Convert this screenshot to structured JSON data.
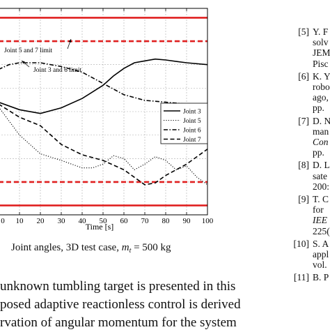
{
  "chart_data": {
    "type": "line",
    "xlabel": "Time [s]",
    "xticks": [
      "0",
      "10",
      "20",
      "30",
      "40",
      "50",
      "60",
      "70",
      "80",
      "90",
      "100"
    ],
    "xlim": [
      0,
      100
    ],
    "ylim": [
      -1.1,
      1.1
    ],
    "grid": true,
    "legend_position": "center-right",
    "limit_lines": [
      {
        "label": "Joint 5 and 7 limit",
        "y": 1.0,
        "color": "#e02020",
        "style": "solid"
      },
      {
        "label": "",
        "y": -1.0,
        "color": "#e02020",
        "style": "solid"
      },
      {
        "label": "Joint 3 and 6 limit",
        "y": 0.75,
        "color": "#e02020",
        "style": "dashed"
      },
      {
        "label": "",
        "y": -0.75,
        "color": "#e02020",
        "style": "dashed"
      }
    ],
    "series": [
      {
        "name": "Joint 3",
        "style": "solid",
        "x": [
          0,
          10,
          20,
          30,
          40,
          50,
          55,
          60,
          65,
          70,
          75,
          80,
          90,
          100
        ],
        "y": [
          0.1,
          0.02,
          -0.02,
          0.04,
          0.14,
          0.28,
          0.38,
          0.46,
          0.52,
          0.54,
          0.56,
          0.55,
          0.52,
          0.5
        ]
      },
      {
        "name": "Joint 5",
        "style": "dotted",
        "x": [
          0,
          10,
          20,
          30,
          40,
          45,
          50,
          55,
          60,
          65,
          70,
          75,
          80,
          85,
          90,
          95,
          100
        ],
        "y": [
          0.05,
          -0.25,
          -0.45,
          -0.52,
          -0.6,
          -0.6,
          -0.56,
          -0.47,
          -0.5,
          -0.62,
          -0.56,
          -0.48,
          -0.52,
          -0.62,
          -0.58,
          -0.7,
          -0.78
        ]
      },
      {
        "name": "Joint 6",
        "style": "dash-dot",
        "x": [
          0,
          5,
          10,
          20,
          30,
          40,
          50,
          60,
          70,
          80,
          90,
          100
        ],
        "y": [
          0.45,
          0.5,
          0.52,
          0.52,
          0.48,
          0.42,
          0.3,
          0.18,
          0.12,
          0.1,
          0.08,
          0.06
        ]
      },
      {
        "name": "Joint 7",
        "style": "dashed",
        "x": [
          0,
          10,
          20,
          30,
          40,
          50,
          60,
          65,
          70,
          75,
          80,
          90,
          100
        ],
        "y": [
          0.08,
          -0.06,
          -0.15,
          -0.35,
          -0.46,
          -0.52,
          -0.62,
          -0.7,
          -0.78,
          -0.76,
          -0.68,
          -0.56,
          -0.4
        ]
      }
    ]
  },
  "caption": {
    "text": "Joint angles, 3D test case, ",
    "math_var": "m",
    "math_sub": "t",
    "math_rest": " = 500 kg"
  },
  "body_text": [
    "unknown tumbling target is presented in this",
    "posed adaptive reactionless control is derived",
    "rvation of angular momentum for the system"
  ],
  "references": [
    {
      "num": "[5]",
      "lines": [
        "Y. F",
        "solv",
        "JEM",
        "Pisc"
      ],
      "italic": []
    },
    {
      "num": "[6]",
      "lines": [
        "K. Y",
        "robo",
        "ago,",
        "pp."
      ],
      "italic": []
    },
    {
      "num": "[7]",
      "lines": [
        "D. N",
        "man",
        "Con",
        "pp."
      ],
      "italic": [
        2
      ]
    },
    {
      "num": "[8]",
      "lines": [
        "D. L",
        "sate",
        "200:"
      ],
      "italic": []
    },
    {
      "num": "[9]",
      "lines": [
        "T. C",
        "for",
        "IEE",
        "225("
      ],
      "italic": [
        2
      ]
    },
    {
      "num": "[10]",
      "lines": [
        "S. A",
        "appl",
        "vol."
      ],
      "italic": []
    },
    {
      "num": "[11]",
      "lines": [
        "B. P"
      ],
      "italic": []
    }
  ]
}
